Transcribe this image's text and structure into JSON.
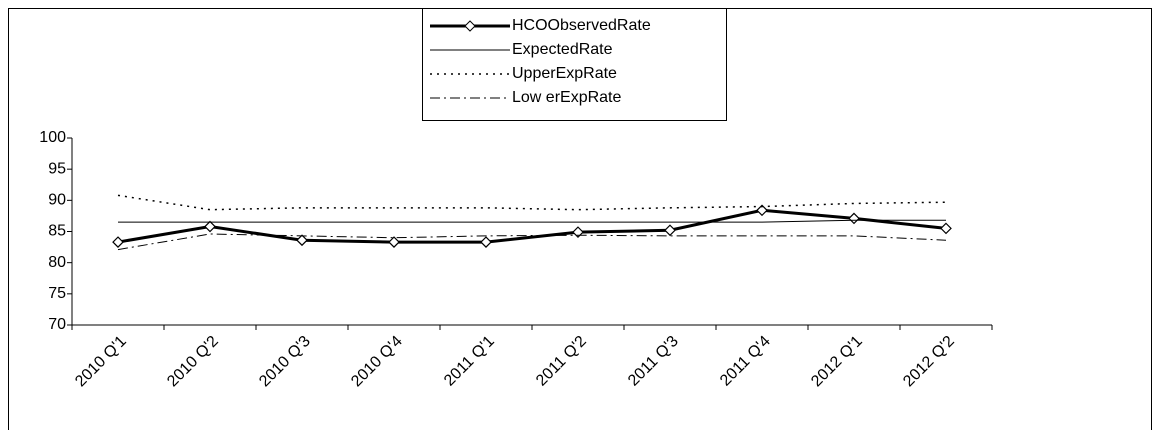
{
  "chart_data": {
    "type": "line",
    "categories": [
      "2010 Q'1",
      "2010 Q'2",
      "2010 Q'3",
      "2010 Q'4",
      "2011 Q'1",
      "2011 Q'2",
      "2011 Q'3",
      "2011 Q'4",
      "2012 Q'1",
      "2012 Q'2"
    ],
    "series": [
      {
        "name": "HCOObservedRate",
        "color": "#000000",
        "style": "bold-diamond",
        "values": [
          83.3,
          85.8,
          83.6,
          83.3,
          83.3,
          84.9,
          85.2,
          88.4,
          87.1,
          85.5
        ]
      },
      {
        "name": "ExpectedRate",
        "color": "#000000",
        "style": "solid",
        "values": [
          86.5,
          86.5,
          86.5,
          86.5,
          86.5,
          86.5,
          86.5,
          86.5,
          86.8,
          86.8
        ]
      },
      {
        "name": "UpperExpRate",
        "color": "#000000",
        "style": "dotted",
        "values": [
          90.8,
          88.5,
          88.8,
          88.8,
          88.8,
          88.5,
          88.8,
          89.0,
          89.5,
          89.7
        ]
      },
      {
        "name": "Low erExpRate",
        "color": "#000000",
        "style": "dash-dot",
        "values": [
          82.1,
          84.6,
          84.3,
          84.0,
          84.3,
          84.4,
          84.3,
          84.3,
          84.3,
          83.6
        ]
      }
    ],
    "ylim": [
      70,
      100
    ],
    "yticks": [
      70,
      75,
      80,
      85,
      90,
      95,
      100
    ],
    "legend": "top"
  }
}
